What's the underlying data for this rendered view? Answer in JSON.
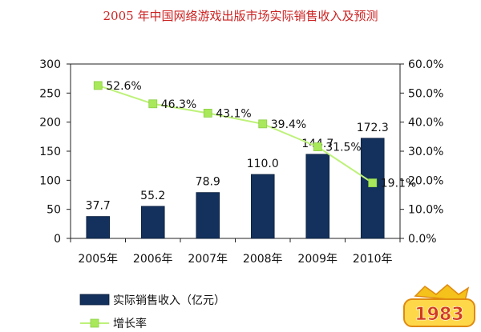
{
  "title": "2005 年中国网络游戏出版市场实际销售收入及预测",
  "chart_data": {
    "type": "bar",
    "categories": [
      "2005年",
      "2006年",
      "2007年",
      "2008年",
      "2009年",
      "2010年"
    ],
    "series": [
      {
        "name": "实际销售收入（亿元）",
        "type": "bar",
        "axis": "left",
        "values": [
          37.7,
          55.2,
          78.9,
          110.0,
          144.7,
          172.3
        ],
        "labels": [
          "37.7",
          "55.2",
          "78.9",
          "110.0",
          "144.7",
          "172.3"
        ],
        "color": "#13315c"
      },
      {
        "name": "增长率",
        "type": "line",
        "axis": "right",
        "values": [
          52.6,
          46.3,
          43.1,
          39.4,
          31.5,
          19.1
        ],
        "labels": [
          "52.6%",
          "46.3%",
          "43.1%",
          "39.4%",
          "31.5%",
          "19.1%"
        ],
        "color": "#bef27a"
      }
    ],
    "ylim": [
      0,
      300
    ],
    "yticks": [
      "0",
      "50",
      "100",
      "150",
      "200",
      "250",
      "300"
    ],
    "y2lim": [
      0,
      60
    ],
    "y2ticks": [
      "0.0%",
      "10.0%",
      "20.0%",
      "30.0%",
      "40.0%",
      "50.0%",
      "60.0%"
    ],
    "grid": false,
    "legend_position": "bottom-left"
  },
  "watermark_text": "1983"
}
